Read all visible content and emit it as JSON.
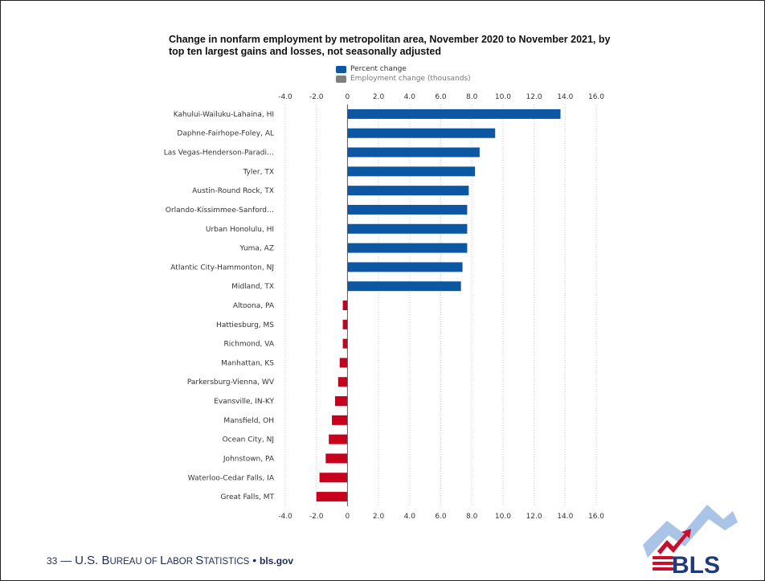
{
  "slide": {
    "page_number": "33",
    "footer_dash": "—",
    "footer_org_parts": [
      {
        "cap": "U.S. B",
        "rest": "UREAU OF "
      },
      {
        "cap": "L",
        "rest": "ABOR "
      },
      {
        "cap": "S",
        "rest": "TATISTICS"
      }
    ],
    "footer_bullet": "•",
    "footer_site": "bls.gov",
    "logo_text": "BLS"
  },
  "colors": {
    "positive_bar": "#0b57a4",
    "negative_bar": "#c8001e",
    "grid": "#cccccc",
    "zero_line": "#555555",
    "legend_employment": "#7f7f7f",
    "logo_blue": "#1f3a78",
    "logo_red": "#c8102e",
    "logo_wave": "#a9c4e6"
  },
  "chart_data": {
    "type": "bar",
    "orientation": "horizontal",
    "title": "Change in nonfarm employment by metropolitan area, November 2020 to November 2021, by top ten largest gains and losses, not seasonally adjusted",
    "legend": [
      "Percent change",
      "Employment change (thousands)"
    ],
    "legend_position": "top",
    "xlim": [
      -4.0,
      16.0
    ],
    "x_ticks": [
      "-4.0",
      "-2.0",
      "0",
      "2.0",
      "4.0",
      "6.0",
      "8.0",
      "10.0",
      "12.0",
      "14.0",
      "16.0"
    ],
    "x_tick_values": [
      -4,
      -2,
      0,
      2,
      4,
      6,
      8,
      10,
      12,
      14,
      16
    ],
    "x_axis_labels_top_and_bottom": true,
    "grid": "vertical dotted",
    "categories": [
      "Kahului-Wailuku-Lahaina, HI",
      "Daphne-Fairhope-Foley, AL",
      "Las Vegas-Henderson-Paradi…",
      "Tyler, TX",
      "Austin-Round Rock, TX",
      "Orlando-Kissimmee-Sanford…",
      "Urban Honolulu, HI",
      "Yuma, AZ",
      "Atlantic City-Hammonton, NJ",
      "Midland, TX",
      "Altoona, PA",
      "Hattiesburg, MS",
      "Richmond, VA",
      "Manhattan, KS",
      "Parkersburg-Vienna, WV",
      "Evansville, IN-KY",
      "Mansfield, OH",
      "Ocean City, NJ",
      "Johnstown, PA",
      "Waterloo-Cedar Falls, IA",
      "Great Falls, MT"
    ],
    "series": [
      {
        "name": "Percent change",
        "values": [
          13.7,
          9.5,
          8.5,
          8.2,
          7.8,
          7.7,
          7.7,
          7.7,
          7.4,
          7.3,
          -0.3,
          -0.3,
          -0.3,
          -0.5,
          -0.6,
          -0.8,
          -1.0,
          -1.2,
          -1.4,
          -1.8,
          -2.0
        ]
      }
    ]
  }
}
